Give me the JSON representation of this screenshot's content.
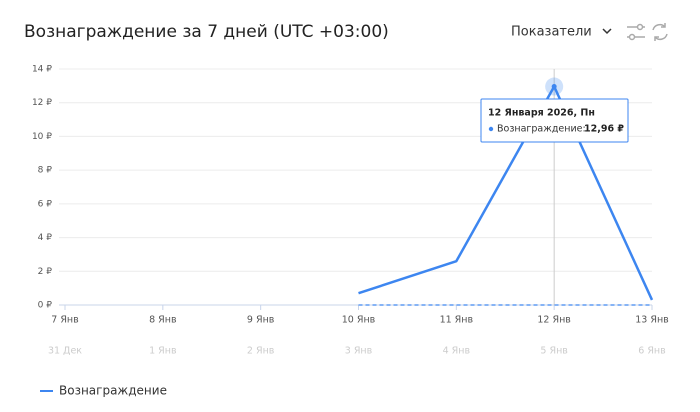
{
  "chart_data": {
    "type": "line",
    "title": "Вознаграждение за 7 дней (UTC +03:00)",
    "menu_label": "Показатели",
    "categories": [
      "7 Янв",
      "8 Янв",
      "9 Янв",
      "10 Янв",
      "11 Янв",
      "12 Янв",
      "13 Янв"
    ],
    "series": [
      {
        "name": "Вознаграждение",
        "color": "#3d86f0",
        "values": [
          null,
          null,
          null,
          0.7,
          2.6,
          12.96,
          0.3
        ]
      }
    ],
    "comparison": {
      "categories": [
        "31 Дек",
        "1 Янв",
        "2 Янв",
        "3 Янв",
        "4 Янв",
        "5 Янв",
        "6 Янв"
      ],
      "color": "#3d86f0",
      "values": [
        null,
        null,
        null,
        0,
        0,
        0,
        0
      ]
    },
    "ylim": [
      0,
      14
    ],
    "yticks": [
      {
        "value": 0,
        "label": "0 ₽"
      },
      {
        "value": 2,
        "label": "2 ₽"
      },
      {
        "value": 4,
        "label": "4 ₽"
      },
      {
        "value": 6,
        "label": "6 ₽"
      },
      {
        "value": 8,
        "label": "8 ₽"
      },
      {
        "value": 10,
        "label": "10 ₽"
      },
      {
        "value": 12,
        "label": "12 ₽"
      },
      {
        "value": 14,
        "label": "14 ₽"
      }
    ],
    "grid": true,
    "tooltip": {
      "index": 5,
      "date": "12 Января 2026, Пн",
      "label": "Вознаграждение:",
      "value": 12.96,
      "value_label": "12,96 ₽"
    }
  }
}
